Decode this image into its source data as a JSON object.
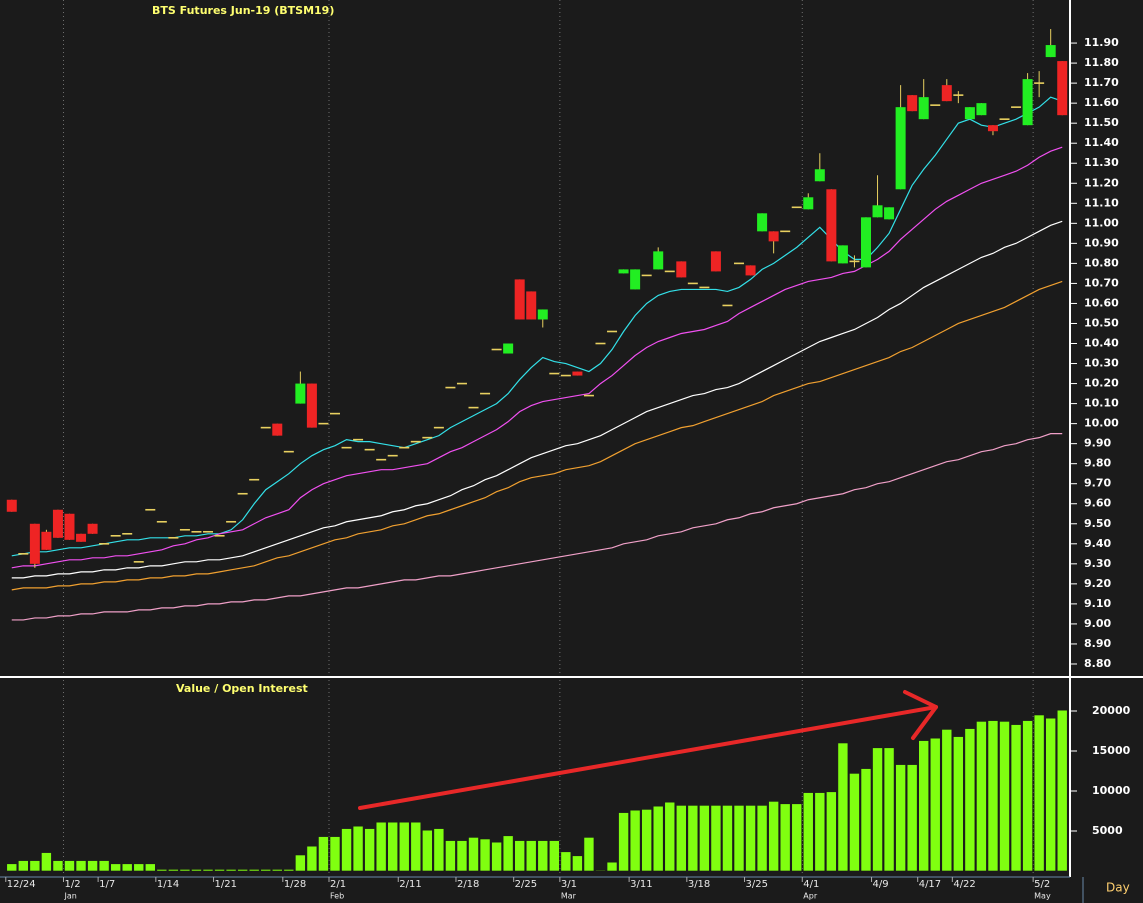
{
  "chart_data": {
    "type": "candlestick",
    "title": "BTS  Futures  Jun-19  (BTSM19)",
    "x_axis_label": "Day",
    "categories": [
      "12/24",
      null,
      null,
      null,
      null,
      "1/2",
      null,
      null,
      "1/7",
      null,
      null,
      null,
      null,
      "1/14",
      null,
      null,
      null,
      null,
      "1/21",
      null,
      null,
      null,
      null,
      null,
      "1/28",
      null,
      null,
      null,
      "2/1",
      null,
      null,
      null,
      null,
      null,
      "2/11",
      null,
      null,
      null,
      null,
      "2/18",
      null,
      null,
      null,
      null,
      "2/25",
      null,
      null,
      null,
      "3/1",
      null,
      null,
      null,
      null,
      null,
      "3/11",
      null,
      null,
      null,
      null,
      "3/18",
      null,
      null,
      null,
      null,
      "3/25",
      null,
      null,
      null,
      null,
      "4/1",
      null,
      null,
      null,
      null,
      null,
      "4/9",
      null,
      null,
      null,
      "4/17",
      null,
      null,
      "4/22",
      null,
      null,
      null,
      null,
      null,
      null,
      "5/2",
      null,
      null
    ],
    "months": [
      null,
      null,
      null,
      null,
      null,
      "Jan",
      null,
      null,
      null,
      null,
      null,
      null,
      null,
      null,
      null,
      null,
      null,
      null,
      null,
      null,
      null,
      null,
      null,
      null,
      null,
      null,
      null,
      null,
      "Feb",
      null,
      null,
      null,
      null,
      null,
      null,
      null,
      null,
      null,
      null,
      null,
      null,
      null,
      null,
      null,
      null,
      null,
      null,
      null,
      "Mar",
      null,
      null,
      null,
      null,
      null,
      null,
      null,
      null,
      null,
      null,
      null,
      null,
      null,
      null,
      null,
      null,
      null,
      null,
      null,
      null,
      "Apr",
      null,
      null,
      null,
      null,
      null,
      null,
      null,
      null,
      null,
      null,
      null,
      null,
      null,
      null,
      null,
      null,
      null,
      null,
      null,
      "May",
      null,
      null
    ],
    "open": [
      9.62,
      9.35,
      9.5,
      9.46,
      9.57,
      9.55,
      9.45,
      9.5,
      9.4,
      9.44,
      9.45,
      9.31,
      9.57,
      9.51,
      9.43,
      9.47,
      9.46,
      9.46,
      9.44,
      9.51,
      9.65,
      9.72,
      9.98,
      10.0,
      9.86,
      10.1,
      10.2,
      10.0,
      10.05,
      9.88,
      9.92,
      9.87,
      9.82,
      9.84,
      9.88,
      9.91,
      9.93,
      9.98,
      10.18,
      10.2,
      10.08,
      10.15,
      10.37,
      10.35,
      10.72,
      10.66,
      10.52,
      10.25,
      10.24,
      10.26,
      10.14,
      10.4,
      10.46,
      10.75,
      10.67,
      10.74,
      10.77,
      10.76,
      10.81,
      10.7,
      10.68,
      10.86,
      10.59,
      10.8,
      10.79,
      10.96,
      10.96,
      10.96,
      11.08,
      11.07,
      11.21,
      11.17,
      10.8,
      10.81,
      10.78,
      11.03,
      11.02,
      11.17,
      11.64,
      11.52,
      11.59,
      11.69,
      11.64,
      11.52,
      11.54,
      11.49,
      11.52,
      11.58,
      11.49,
      11.7,
      11.83,
      11.81
    ],
    "high": [
      9.62,
      9.35,
      9.5,
      9.47,
      9.57,
      9.55,
      9.45,
      9.5,
      9.4,
      9.44,
      9.45,
      9.31,
      9.57,
      9.51,
      9.43,
      9.47,
      9.46,
      9.46,
      9.44,
      9.51,
      9.65,
      9.72,
      9.98,
      10.0,
      9.86,
      10.26,
      10.2,
      10.0,
      10.05,
      9.88,
      9.92,
      9.87,
      9.82,
      9.84,
      9.88,
      9.91,
      9.93,
      9.98,
      10.18,
      10.2,
      10.08,
      10.15,
      10.37,
      10.4,
      10.72,
      10.66,
      10.57,
      10.25,
      10.24,
      10.26,
      10.14,
      10.4,
      10.46,
      10.77,
      10.77,
      10.74,
      10.88,
      10.76,
      10.81,
      10.7,
      10.68,
      10.86,
      10.59,
      10.8,
      10.79,
      11.05,
      10.96,
      10.96,
      11.08,
      11.15,
      11.35,
      11.17,
      10.89,
      10.84,
      11.03,
      11.24,
      11.08,
      11.69,
      11.64,
      11.72,
      11.59,
      11.72,
      11.66,
      11.58,
      11.6,
      11.49,
      11.52,
      11.58,
      11.75,
      11.76,
      11.97,
      11.81
    ],
    "low": [
      9.56,
      9.35,
      9.28,
      9.37,
      9.43,
      9.42,
      9.41,
      9.45,
      9.4,
      9.44,
      9.45,
      9.31,
      9.57,
      9.51,
      9.43,
      9.47,
      9.46,
      9.46,
      9.44,
      9.51,
      9.65,
      9.72,
      9.98,
      9.94,
      9.86,
      10.1,
      9.98,
      10.0,
      10.05,
      9.88,
      9.92,
      9.87,
      9.82,
      9.84,
      9.88,
      9.91,
      9.93,
      9.98,
      10.18,
      10.2,
      10.08,
      10.15,
      10.37,
      10.35,
      10.52,
      10.52,
      10.48,
      10.25,
      10.24,
      10.24,
      10.14,
      10.4,
      10.46,
      10.75,
      10.67,
      10.74,
      10.77,
      10.76,
      10.73,
      10.7,
      10.68,
      10.76,
      10.59,
      10.8,
      10.74,
      10.96,
      10.85,
      10.96,
      11.08,
      11.07,
      11.21,
      10.81,
      10.8,
      10.78,
      10.78,
      11.03,
      11.02,
      11.17,
      11.56,
      11.52,
      11.59,
      11.61,
      11.6,
      11.52,
      11.54,
      11.44,
      11.52,
      11.58,
      11.49,
      11.63,
      11.83,
      11.54
    ],
    "close": [
      9.56,
      9.35,
      9.3,
      9.37,
      9.43,
      9.42,
      9.41,
      9.45,
      9.4,
      9.44,
      9.45,
      9.31,
      9.57,
      9.51,
      9.43,
      9.47,
      9.46,
      9.46,
      9.44,
      9.51,
      9.65,
      9.72,
      9.98,
      9.94,
      9.86,
      10.2,
      9.98,
      10.0,
      10.05,
      9.88,
      9.92,
      9.87,
      9.82,
      9.84,
      9.88,
      9.91,
      9.93,
      9.98,
      10.18,
      10.2,
      10.08,
      10.15,
      10.37,
      10.4,
      10.52,
      10.52,
      10.57,
      10.25,
      10.24,
      10.24,
      10.14,
      10.4,
      10.46,
      10.77,
      10.77,
      10.74,
      10.86,
      10.76,
      10.73,
      10.7,
      10.68,
      10.76,
      10.59,
      10.8,
      10.74,
      11.05,
      10.91,
      10.96,
      11.08,
      11.13,
      11.27,
      10.81,
      10.89,
      10.81,
      11.03,
      11.09,
      11.08,
      11.58,
      11.56,
      11.63,
      11.59,
      11.61,
      11.64,
      11.58,
      11.6,
      11.46,
      11.52,
      11.58,
      11.72,
      11.7,
      11.89,
      11.54
    ],
    "up_color": "#22ee22",
    "down_color": "#ee2424",
    "doji_color": "#e8d060",
    "lines": [
      {
        "color": "#33e0e8",
        "values": [
          9.34,
          9.35,
          9.36,
          9.36,
          9.37,
          9.38,
          9.38,
          9.39,
          9.4,
          9.41,
          9.42,
          9.42,
          9.43,
          9.43,
          9.43,
          9.44,
          9.44,
          9.45,
          9.45,
          9.47,
          9.52,
          9.6,
          9.67,
          9.71,
          9.75,
          9.8,
          9.84,
          9.87,
          9.89,
          9.92,
          9.91,
          9.91,
          9.9,
          9.89,
          9.88,
          9.9,
          9.92,
          9.94,
          9.98,
          10.01,
          10.04,
          10.07,
          10.1,
          10.15,
          10.22,
          10.28,
          10.33,
          10.31,
          10.3,
          10.28,
          10.26,
          10.3,
          10.37,
          10.46,
          10.54,
          10.6,
          10.64,
          10.66,
          10.67,
          10.67,
          10.67,
          10.67,
          10.66,
          10.68,
          10.72,
          10.77,
          10.8,
          10.84,
          10.88,
          10.93,
          10.98,
          10.92,
          10.86,
          10.82,
          10.82,
          10.88,
          10.95,
          11.07,
          11.19,
          11.27,
          11.34,
          11.42,
          11.5,
          11.52,
          11.49,
          11.48,
          11.5,
          11.52,
          11.55,
          11.58,
          11.63,
          11.61
        ]
      },
      {
        "color": "#f050f0",
        "values": [
          9.28,
          9.29,
          9.29,
          9.3,
          9.31,
          9.32,
          9.32,
          9.33,
          9.33,
          9.34,
          9.34,
          9.35,
          9.36,
          9.37,
          9.39,
          9.4,
          9.42,
          9.43,
          9.45,
          9.46,
          9.47,
          9.5,
          9.53,
          9.55,
          9.57,
          9.63,
          9.67,
          9.7,
          9.72,
          9.74,
          9.75,
          9.76,
          9.77,
          9.77,
          9.78,
          9.79,
          9.8,
          9.83,
          9.86,
          9.88,
          9.91,
          9.94,
          9.97,
          10.01,
          10.06,
          10.09,
          10.11,
          10.12,
          10.13,
          10.14,
          10.15,
          10.2,
          10.24,
          10.29,
          10.34,
          10.38,
          10.41,
          10.43,
          10.45,
          10.46,
          10.47,
          10.49,
          10.51,
          10.55,
          10.58,
          10.61,
          10.64,
          10.67,
          10.69,
          10.71,
          10.72,
          10.73,
          10.75,
          10.76,
          10.79,
          10.82,
          10.86,
          10.92,
          10.97,
          11.02,
          11.07,
          11.11,
          11.14,
          11.17,
          11.2,
          11.22,
          11.24,
          11.26,
          11.29,
          11.33,
          11.36,
          11.38
        ]
      },
      {
        "color": "#ffffff",
        "values": [
          9.23,
          9.23,
          9.24,
          9.24,
          9.25,
          9.25,
          9.26,
          9.26,
          9.27,
          9.27,
          9.28,
          9.28,
          9.29,
          9.29,
          9.3,
          9.31,
          9.31,
          9.32,
          9.32,
          9.33,
          9.34,
          9.36,
          9.38,
          9.4,
          9.42,
          9.44,
          9.46,
          9.48,
          9.49,
          9.51,
          9.52,
          9.53,
          9.54,
          9.56,
          9.57,
          9.59,
          9.6,
          9.62,
          9.64,
          9.67,
          9.69,
          9.72,
          9.74,
          9.77,
          9.8,
          9.83,
          9.85,
          9.87,
          9.89,
          9.9,
          9.92,
          9.94,
          9.97,
          10.0,
          10.03,
          10.06,
          10.08,
          10.1,
          10.12,
          10.14,
          10.15,
          10.17,
          10.18,
          10.2,
          10.23,
          10.26,
          10.29,
          10.32,
          10.35,
          10.38,
          10.41,
          10.43,
          10.45,
          10.47,
          10.5,
          10.53,
          10.57,
          10.6,
          10.64,
          10.68,
          10.71,
          10.74,
          10.77,
          10.8,
          10.83,
          10.85,
          10.88,
          10.9,
          10.93,
          10.96,
          10.99,
          11.01
        ]
      },
      {
        "color": "#f0a030",
        "values": [
          9.17,
          9.18,
          9.18,
          9.18,
          9.19,
          9.19,
          9.2,
          9.2,
          9.21,
          9.21,
          9.22,
          9.22,
          9.23,
          9.23,
          9.24,
          9.24,
          9.25,
          9.25,
          9.26,
          9.27,
          9.28,
          9.29,
          9.31,
          9.33,
          9.34,
          9.36,
          9.38,
          9.4,
          9.42,
          9.43,
          9.45,
          9.46,
          9.47,
          9.49,
          9.5,
          9.52,
          9.54,
          9.55,
          9.57,
          9.59,
          9.61,
          9.63,
          9.66,
          9.68,
          9.71,
          9.73,
          9.74,
          9.75,
          9.77,
          9.78,
          9.79,
          9.81,
          9.84,
          9.87,
          9.9,
          9.92,
          9.94,
          9.96,
          9.98,
          9.99,
          10.01,
          10.03,
          10.05,
          10.07,
          10.09,
          10.11,
          10.14,
          10.16,
          10.18,
          10.2,
          10.21,
          10.23,
          10.25,
          10.27,
          10.29,
          10.31,
          10.33,
          10.36,
          10.38,
          10.41,
          10.44,
          10.47,
          10.5,
          10.52,
          10.54,
          10.56,
          10.58,
          10.61,
          10.64,
          10.67,
          10.69,
          10.71
        ]
      },
      {
        "color": "#f0a0c8",
        "values": [
          9.02,
          9.02,
          9.03,
          9.03,
          9.04,
          9.04,
          9.05,
          9.05,
          9.06,
          9.06,
          9.06,
          9.07,
          9.07,
          9.08,
          9.08,
          9.09,
          9.09,
          9.1,
          9.1,
          9.11,
          9.11,
          9.12,
          9.12,
          9.13,
          9.14,
          9.14,
          9.15,
          9.16,
          9.17,
          9.18,
          9.18,
          9.19,
          9.2,
          9.21,
          9.22,
          9.22,
          9.23,
          9.24,
          9.24,
          9.25,
          9.26,
          9.27,
          9.28,
          9.29,
          9.3,
          9.31,
          9.32,
          9.33,
          9.34,
          9.35,
          9.36,
          9.37,
          9.38,
          9.4,
          9.41,
          9.42,
          9.44,
          9.45,
          9.46,
          9.48,
          9.49,
          9.5,
          9.52,
          9.53,
          9.55,
          9.56,
          9.58,
          9.59,
          9.6,
          9.62,
          9.63,
          9.64,
          9.65,
          9.67,
          9.68,
          9.7,
          9.71,
          9.73,
          9.75,
          9.77,
          9.79,
          9.81,
          9.82,
          9.84,
          9.86,
          9.87,
          9.89,
          9.9,
          9.92,
          9.93,
          9.95,
          9.95
        ]
      }
    ],
    "ylim": [
      8.745,
      12.105
    ],
    "yticks": [
      {
        "value": 8.8,
        "label": "8.80"
      },
      {
        "value": 8.9,
        "label": "8.90"
      },
      {
        "value": 9.0,
        "label": "9.00"
      },
      {
        "value": 9.1,
        "label": "9.10"
      },
      {
        "value": 9.2,
        "label": "9.20"
      },
      {
        "value": 9.3,
        "label": "9.30"
      },
      {
        "value": 9.4,
        "label": "9.40"
      },
      {
        "value": 9.5,
        "label": "9.50"
      },
      {
        "value": 9.6,
        "label": "9.60"
      },
      {
        "value": 9.7,
        "label": "9.70"
      },
      {
        "value": 9.8,
        "label": "9.80"
      },
      {
        "value": 9.9,
        "label": "9.90"
      },
      {
        "value": 10.0,
        "label": "10.00"
      },
      {
        "value": 10.1,
        "label": "10.10"
      },
      {
        "value": 10.2,
        "label": "10.20"
      },
      {
        "value": 10.3,
        "label": "10.30"
      },
      {
        "value": 10.4,
        "label": "10.40"
      },
      {
        "value": 10.5,
        "label": "10.50"
      },
      {
        "value": 10.6,
        "label": "10.60"
      },
      {
        "value": 10.7,
        "label": "10.70"
      },
      {
        "value": 10.8,
        "label": "10.80"
      },
      {
        "value": 10.9,
        "label": "10.90"
      },
      {
        "value": 11.0,
        "label": "11.00"
      },
      {
        "value": 11.1,
        "label": "11.10"
      },
      {
        "value": 11.2,
        "label": "11.20"
      },
      {
        "value": 11.3,
        "label": "11.30"
      },
      {
        "value": 11.4,
        "label": "11.40"
      },
      {
        "value": 11.5,
        "label": "11.50"
      },
      {
        "value": 11.6,
        "label": "11.60"
      },
      {
        "value": 11.7,
        "label": "11.70"
      },
      {
        "value": 11.8,
        "label": "11.80"
      },
      {
        "value": 11.9,
        "label": "11.90"
      }
    ],
    "volume": {
      "title": "Value  /  Open  Interest",
      "color": "#80ff10",
      "values": [
        900,
        1300,
        1300,
        2300,
        1300,
        1300,
        1300,
        1300,
        1300,
        900,
        900,
        900,
        900,
        200,
        200,
        200,
        200,
        200,
        200,
        200,
        200,
        200,
        200,
        200,
        200,
        2000,
        3100,
        4300,
        4300,
        5300,
        5600,
        5300,
        6100,
        6100,
        6100,
        6100,
        5100,
        5300,
        3800,
        3800,
        4200,
        4000,
        3600,
        4400,
        3800,
        3800,
        3800,
        3800,
        2400,
        1900,
        4200,
        100,
        1100,
        7300,
        7600,
        7700,
        8100,
        8600,
        8200,
        8200,
        8200,
        8200,
        8200,
        8200,
        8200,
        8200,
        8700,
        8400,
        8400,
        9800,
        9800,
        9900,
        16000,
        12200,
        12800,
        15400,
        15400,
        13300,
        13300,
        16300,
        16600,
        17700,
        16800,
        17800,
        18700,
        18800,
        18700,
        18300,
        18800,
        19500,
        19100,
        20100
      ],
      "ylim": [
        0,
        24000
      ],
      "yticks": [
        5000,
        10000,
        15000,
        20000
      ]
    }
  }
}
